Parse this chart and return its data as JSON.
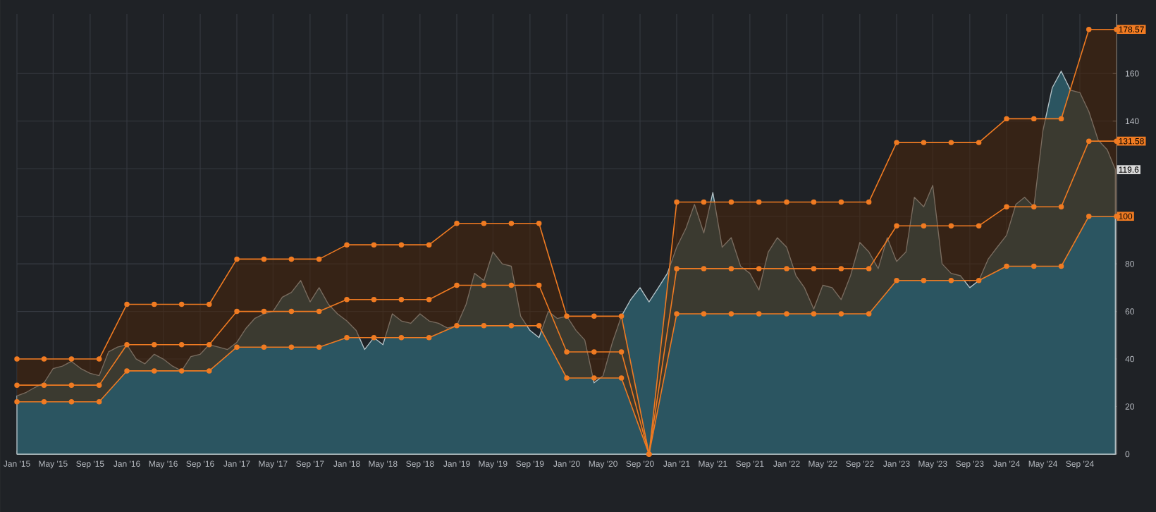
{
  "chart_data": {
    "type": "line",
    "x": [
      "2015-01",
      "2015-04",
      "2015-07",
      "2015-10",
      "2016-01",
      "2016-04",
      "2016-07",
      "2016-10",
      "2017-01",
      "2017-04",
      "2017-07",
      "2017-10",
      "2018-01",
      "2018-04",
      "2018-07",
      "2018-10",
      "2019-01",
      "2019-04",
      "2019-07",
      "2019-10",
      "2020-01",
      "2020-04",
      "2020-07",
      "2020-10",
      "2021-01",
      "2021-04",
      "2021-07",
      "2021-10",
      "2022-01",
      "2022-04",
      "2022-07",
      "2022-10",
      "2023-01",
      "2023-04",
      "2023-07",
      "2023-10",
      "2024-01",
      "2024-04",
      "2024-07",
      "2024-10",
      "2025-01"
    ],
    "series": [
      {
        "type": "area",
        "color": "#2b5561",
        "marker": "none",
        "x": [
          "2015-01",
          "2015-02",
          "2015-03",
          "2015-04",
          "2015-05",
          "2015-06",
          "2015-07",
          "2015-08",
          "2015-09",
          "2015-10",
          "2015-11",
          "2015-12",
          "2016-01",
          "2016-02",
          "2016-03",
          "2016-04",
          "2016-05",
          "2016-06",
          "2016-07",
          "2016-08",
          "2016-09",
          "2016-10",
          "2016-11",
          "2016-12",
          "2017-01",
          "2017-02",
          "2017-03",
          "2017-04",
          "2017-05",
          "2017-06",
          "2017-07",
          "2017-08",
          "2017-09",
          "2017-10",
          "2017-11",
          "2017-12",
          "2018-01",
          "2018-02",
          "2018-03",
          "2018-04",
          "2018-05",
          "2018-06",
          "2018-07",
          "2018-08",
          "2018-09",
          "2018-10",
          "2018-11",
          "2018-12",
          "2019-01",
          "2019-02",
          "2019-03",
          "2019-04",
          "2019-05",
          "2019-06",
          "2019-07",
          "2019-08",
          "2019-09",
          "2019-10",
          "2019-11",
          "2019-12",
          "2020-01",
          "2020-02",
          "2020-03",
          "2020-04",
          "2020-05",
          "2020-06",
          "2020-07",
          "2020-08",
          "2020-09",
          "2020-10",
          "2020-11",
          "2020-12",
          "2021-01",
          "2021-02",
          "2021-03",
          "2021-04",
          "2021-05",
          "2021-06",
          "2021-07",
          "2021-08",
          "2021-09",
          "2021-10",
          "2021-11",
          "2021-12",
          "2022-01",
          "2022-02",
          "2022-03",
          "2022-04",
          "2022-05",
          "2022-06",
          "2022-07",
          "2022-08",
          "2022-09",
          "2022-10",
          "2022-11",
          "2022-12",
          "2023-01",
          "2023-02",
          "2023-03",
          "2023-04",
          "2023-05",
          "2023-06",
          "2023-07",
          "2023-08",
          "2023-09",
          "2023-10",
          "2023-11",
          "2023-12",
          "2024-01",
          "2024-02",
          "2024-03",
          "2024-04",
          "2024-05",
          "2024-06",
          "2024-07",
          "2024-08",
          "2024-09",
          "2024-10",
          "2024-11",
          "2024-12",
          "2024-12-28"
        ],
        "values": [
          24.5,
          26,
          28,
          30,
          36,
          37,
          39,
          36,
          34,
          33,
          43,
          45,
          46,
          40,
          38,
          42,
          40,
          37,
          35,
          41,
          42,
          46,
          45,
          44,
          47,
          53,
          57,
          59,
          60,
          66,
          68,
          73,
          64,
          70,
          63,
          59,
          56,
          52,
          44,
          49,
          46,
          59,
          56,
          55,
          59,
          56,
          55,
          53,
          54,
          63,
          76,
          73,
          85,
          80,
          79,
          58,
          52,
          49,
          60,
          57,
          58,
          52,
          48,
          30,
          33,
          47,
          58,
          65,
          70,
          64,
          70,
          76,
          87,
          95,
          105,
          93,
          110,
          87,
          91,
          79,
          76,
          69,
          85,
          91,
          87,
          75,
          70,
          61,
          71,
          70,
          65,
          75,
          89,
          85,
          78,
          91,
          81,
          85,
          108,
          104,
          113,
          80,
          76,
          75,
          70,
          73,
          82,
          87,
          92,
          105,
          108,
          104,
          136,
          154,
          161,
          153,
          152,
          144,
          132,
          128,
          119.6
        ]
      },
      {
        "color": "#f07b22",
        "marker": "circle",
        "values": [
          40,
          40,
          40,
          40,
          63,
          63,
          63,
          63,
          82,
          82,
          82,
          82,
          88,
          88,
          88,
          88,
          97,
          97,
          97,
          97,
          58,
          58,
          58,
          0,
          106,
          106,
          106,
          106,
          106,
          106,
          106,
          106,
          131,
          131,
          131,
          131,
          141,
          141,
          141,
          178.57,
          178.57
        ]
      },
      {
        "color": "#f07b22",
        "marker": "circle",
        "values": [
          29,
          29,
          29,
          29,
          46,
          46,
          46,
          46,
          60,
          60,
          60,
          60,
          65,
          65,
          65,
          65,
          71,
          71,
          71,
          71,
          43,
          43,
          43,
          0,
          78,
          78,
          78,
          78,
          78,
          78,
          78,
          78,
          96,
          96,
          96,
          96,
          104,
          104,
          104,
          131.58,
          131.58
        ],
        "lower": [
          22,
          22,
          22,
          22,
          35,
          35,
          35,
          35,
          45,
          45,
          45,
          45,
          49,
          49,
          49,
          49,
          54,
          54,
          54,
          54,
          32,
          32,
          32,
          0,
          59,
          59,
          59,
          59,
          59,
          59,
          59,
          59,
          73,
          73,
          73,
          73,
          79,
          79,
          79,
          100,
          100
        ],
        "upper": [
          40,
          40,
          40,
          40,
          63,
          63,
          63,
          63,
          82,
          82,
          82,
          82,
          88,
          88,
          88,
          88,
          97,
          97,
          97,
          97,
          58,
          58,
          58,
          0,
          106,
          106,
          106,
          106,
          106,
          106,
          106,
          106,
          131,
          131,
          131,
          131,
          141,
          141,
          141,
          178.57,
          178.57
        ]
      },
      {
        "color": "#f07b22",
        "marker": "circle",
        "values": [
          22,
          22,
          22,
          22,
          35,
          35,
          35,
          35,
          45,
          45,
          45,
          45,
          49,
          49,
          49,
          49,
          54,
          54,
          54,
          54,
          32,
          32,
          32,
          0,
          59,
          59,
          59,
          59,
          59,
          59,
          59,
          59,
          73,
          73,
          73,
          73,
          79,
          79,
          79,
          100,
          100
        ]
      }
    ],
    "annotations": [
      {
        "text": "178.57",
        "x": "2025-01",
        "y": 178.57
      },
      {
        "text": "131.58",
        "x": "2025-01",
        "y": 131.58
      },
      {
        "text": "119.6",
        "x": "2025-01",
        "y": 119.6
      },
      {
        "text": "100",
        "x": "2025-01",
        "y": 100
      }
    ],
    "xlim": [
      "2015-01",
      "2025-01"
    ],
    "xticks": [
      {
        "value": "2015-01",
        "label": "Jan '15"
      },
      {
        "value": "2015-05",
        "label": "May '15"
      },
      {
        "value": "2015-09",
        "label": "Sep '15"
      },
      {
        "value": "2016-01",
        "label": "Jan '16"
      },
      {
        "value": "2016-05",
        "label": "May '16"
      },
      {
        "value": "2016-09",
        "label": "Sep '16"
      },
      {
        "value": "2017-01",
        "label": "Jan '17"
      },
      {
        "value": "2017-05",
        "label": "May '17"
      },
      {
        "value": "2017-09",
        "label": "Sep '17"
      },
      {
        "value": "2018-01",
        "label": "Jan '18"
      },
      {
        "value": "2018-05",
        "label": "May '18"
      },
      {
        "value": "2018-09",
        "label": "Sep '18"
      },
      {
        "value": "2019-01",
        "label": "Jan '19"
      },
      {
        "value": "2019-05",
        "label": "May '19"
      },
      {
        "value": "2019-09",
        "label": "Sep '19"
      },
      {
        "value": "2020-01",
        "label": "Jan '20"
      },
      {
        "value": "2020-05",
        "label": "May '20"
      },
      {
        "value": "2020-09",
        "label": "Sep '20"
      },
      {
        "value": "2021-01",
        "label": "Jan '21"
      },
      {
        "value": "2021-05",
        "label": "May '21"
      },
      {
        "value": "2021-09",
        "label": "Sep '21"
      },
      {
        "value": "2022-01",
        "label": "Jan '22"
      },
      {
        "value": "2022-05",
        "label": "May '22"
      },
      {
        "value": "2022-09",
        "label": "Sep '22"
      },
      {
        "value": "2023-01",
        "label": "Jan '23"
      },
      {
        "value": "2023-05",
        "label": "May '23"
      },
      {
        "value": "2023-09",
        "label": "Sep '23"
      },
      {
        "value": "2024-01",
        "label": "Jan '24"
      },
      {
        "value": "2024-05",
        "label": "May '24"
      },
      {
        "value": "2024-09",
        "label": "Sep '24"
      }
    ],
    "ylim": [
      0,
      185
    ],
    "yticks": [
      0,
      20,
      40,
      60,
      80,
      {
        "value": 100,
        "label": null
      },
      {
        "value": 120,
        "label": null
      },
      140,
      160
    ],
    "grid": true
  }
}
